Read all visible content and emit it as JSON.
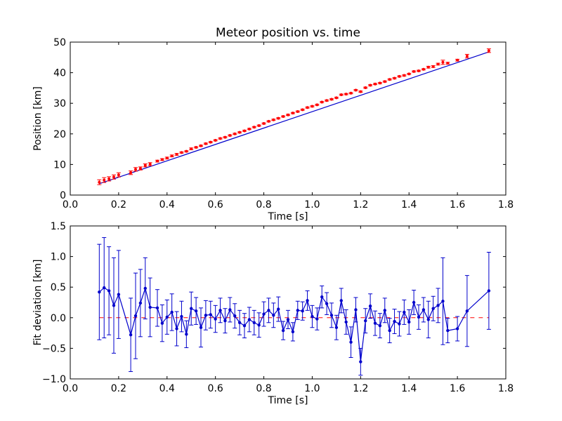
{
  "chart_data": [
    {
      "type": "scatter",
      "title": "Meteor position vs. time",
      "xlabel": "Time [s]",
      "ylabel": "Position [km]",
      "xlim": [
        0.0,
        1.8
      ],
      "ylim": [
        0,
        50
      ],
      "xticks": [
        "0.0",
        "0.2",
        "0.4",
        "0.6",
        "0.8",
        "1.0",
        "1.2",
        "1.4",
        "1.6",
        "1.8"
      ],
      "yticks": [
        "0",
        "10",
        "20",
        "30",
        "40",
        "50"
      ],
      "grid": false,
      "colors": {
        "points": "#ff0000",
        "fit": "#0000cc"
      },
      "fit_line": {
        "x": [
          0.12,
          1.73
        ],
        "y": [
          3.7,
          46.8
        ]
      },
      "series": [
        {
          "x": [
            0.12,
            0.14,
            0.16,
            0.18,
            0.2,
            0.25,
            0.27,
            0.29,
            0.31,
            0.33,
            0.36,
            0.38,
            0.4,
            0.42,
            0.44,
            0.46,
            0.48,
            0.5,
            0.52,
            0.54,
            0.56,
            0.58,
            0.6,
            0.62,
            0.64,
            0.66,
            0.68,
            0.7,
            0.72,
            0.74,
            0.76,
            0.78,
            0.8,
            0.82,
            0.84,
            0.86,
            0.88,
            0.9,
            0.92,
            0.94,
            0.96,
            0.98,
            1.0,
            1.02,
            1.04,
            1.06,
            1.08,
            1.1,
            1.12,
            1.14,
            1.16,
            1.18,
            1.2,
            1.22,
            1.24,
            1.26,
            1.28,
            1.3,
            1.32,
            1.34,
            1.36,
            1.38,
            1.4,
            1.42,
            1.44,
            1.46,
            1.48,
            1.5,
            1.52,
            1.54,
            1.56,
            1.6,
            1.64,
            1.73
          ],
          "y": [
            4.2,
            4.9,
            5.3,
            5.9,
            6.6,
            7.3,
            8.4,
            8.7,
            9.7,
            10.1,
            11.1,
            11.6,
            12.1,
            12.8,
            13.3,
            13.9,
            14.3,
            15.1,
            15.6,
            16.1,
            16.8,
            17.3,
            17.9,
            18.5,
            18.9,
            19.5,
            20.0,
            20.5,
            21.0,
            21.6,
            22.2,
            22.7,
            23.4,
            24.1,
            24.6,
            25.1,
            25.7,
            26.2,
            26.8,
            27.3,
            27.9,
            28.6,
            29.0,
            29.5,
            30.4,
            30.9,
            31.3,
            31.8,
            32.8,
            33.0,
            33.3,
            34.3,
            33.8,
            35.1,
            35.9,
            36.3,
            36.6,
            37.1,
            37.8,
            38.2,
            38.8,
            39.1,
            39.6,
            40.4,
            40.6,
            41.1,
            41.8,
            42.0,
            42.8,
            43.4,
            43.1,
            44.1,
            45.4,
            47.2
          ],
          "yerr": [
            0.8,
            0.8,
            0.7,
            0.7,
            0.7,
            0.6,
            0.6,
            0.5,
            0.5,
            0.5,
            0.3,
            0.3,
            0.3,
            0.3,
            0.3,
            0.2,
            0.2,
            0.3,
            0.2,
            0.2,
            0.2,
            0.2,
            0.2,
            0.2,
            0.2,
            0.2,
            0.2,
            0.2,
            0.2,
            0.2,
            0.2,
            0.2,
            0.2,
            0.2,
            0.2,
            0.2,
            0.2,
            0.2,
            0.2,
            0.2,
            0.2,
            0.2,
            0.2,
            0.2,
            0.2,
            0.2,
            0.2,
            0.2,
            0.2,
            0.2,
            0.2,
            0.2,
            0.2,
            0.2,
            0.2,
            0.2,
            0.2,
            0.2,
            0.2,
            0.2,
            0.2,
            0.2,
            0.2,
            0.2,
            0.2,
            0.2,
            0.3,
            0.3,
            0.3,
            0.7,
            0.3,
            0.3,
            0.6,
            0.6
          ]
        }
      ]
    },
    {
      "type": "line",
      "title": "",
      "xlabel": "Time [s]",
      "ylabel": "Fit deviation [km]",
      "xlim": [
        0.0,
        1.8
      ],
      "ylim": [
        -1.0,
        1.5
      ],
      "xticks": [
        "0.0",
        "0.2",
        "0.4",
        "0.6",
        "0.8",
        "1.0",
        "1.2",
        "1.4",
        "1.6",
        "1.8"
      ],
      "yticks": [
        "−1.0",
        "−0.5",
        "0.0",
        "0.5",
        "1.0",
        "1.5"
      ],
      "grid": false,
      "zero_line": 0.0,
      "colors": {
        "series": "#0000cc",
        "zero_line": "#ff0000"
      },
      "series": [
        {
          "x": [
            0.12,
            0.14,
            0.16,
            0.18,
            0.2,
            0.25,
            0.27,
            0.29,
            0.31,
            0.33,
            0.36,
            0.38,
            0.4,
            0.42,
            0.44,
            0.46,
            0.48,
            0.5,
            0.52,
            0.54,
            0.56,
            0.58,
            0.6,
            0.62,
            0.64,
            0.66,
            0.68,
            0.7,
            0.72,
            0.74,
            0.76,
            0.78,
            0.8,
            0.82,
            0.84,
            0.86,
            0.88,
            0.9,
            0.92,
            0.94,
            0.96,
            0.98,
            1.0,
            1.02,
            1.04,
            1.06,
            1.08,
            1.1,
            1.12,
            1.14,
            1.16,
            1.18,
            1.2,
            1.22,
            1.24,
            1.26,
            1.28,
            1.3,
            1.32,
            1.34,
            1.36,
            1.38,
            1.4,
            1.42,
            1.44,
            1.46,
            1.48,
            1.5,
            1.52,
            1.54,
            1.56,
            1.6,
            1.64,
            1.73
          ],
          "y": [
            0.42,
            0.49,
            0.44,
            0.2,
            0.38,
            -0.28,
            0.03,
            0.24,
            0.48,
            0.17,
            0.16,
            -0.09,
            0.01,
            0.09,
            -0.18,
            0.02,
            -0.27,
            0.15,
            0.11,
            -0.16,
            0.04,
            0.05,
            -0.02,
            0.12,
            -0.05,
            0.13,
            0.03,
            -0.08,
            -0.13,
            -0.03,
            -0.08,
            -0.12,
            0.06,
            0.12,
            0.04,
            0.14,
            -0.21,
            -0.03,
            -0.23,
            0.12,
            0.11,
            0.28,
            0.02,
            -0.02,
            0.34,
            0.23,
            0.04,
            -0.16,
            0.28,
            -0.07,
            -0.4,
            0.13,
            -0.72,
            -0.05,
            0.19,
            -0.09,
            -0.13,
            0.12,
            -0.21,
            -0.06,
            -0.1,
            0.09,
            -0.07,
            0.25,
            0.01,
            0.13,
            -0.03,
            0.15,
            0.2,
            0.27,
            -0.21,
            -0.18,
            0.11,
            0.44
          ],
          "yerr": [
            0.78,
            0.82,
            0.72,
            0.78,
            0.72,
            0.6,
            0.7,
            0.55,
            0.5,
            0.48,
            0.3,
            0.3,
            0.28,
            0.3,
            0.28,
            0.25,
            0.22,
            0.27,
            0.22,
            0.32,
            0.24,
            0.22,
            0.22,
            0.2,
            0.2,
            0.2,
            0.2,
            0.2,
            0.2,
            0.2,
            0.2,
            0.2,
            0.2,
            0.2,
            0.2,
            0.2,
            0.15,
            0.15,
            0.15,
            0.15,
            0.15,
            0.16,
            0.18,
            0.18,
            0.18,
            0.18,
            0.2,
            0.2,
            0.2,
            0.2,
            0.25,
            0.2,
            0.22,
            0.2,
            0.2,
            0.2,
            0.2,
            0.2,
            0.2,
            0.2,
            0.2,
            0.2,
            0.2,
            0.2,
            0.2,
            0.2,
            0.3,
            0.2,
            0.28,
            0.71,
            0.2,
            0.2,
            0.58,
            0.63
          ]
        }
      ]
    }
  ]
}
